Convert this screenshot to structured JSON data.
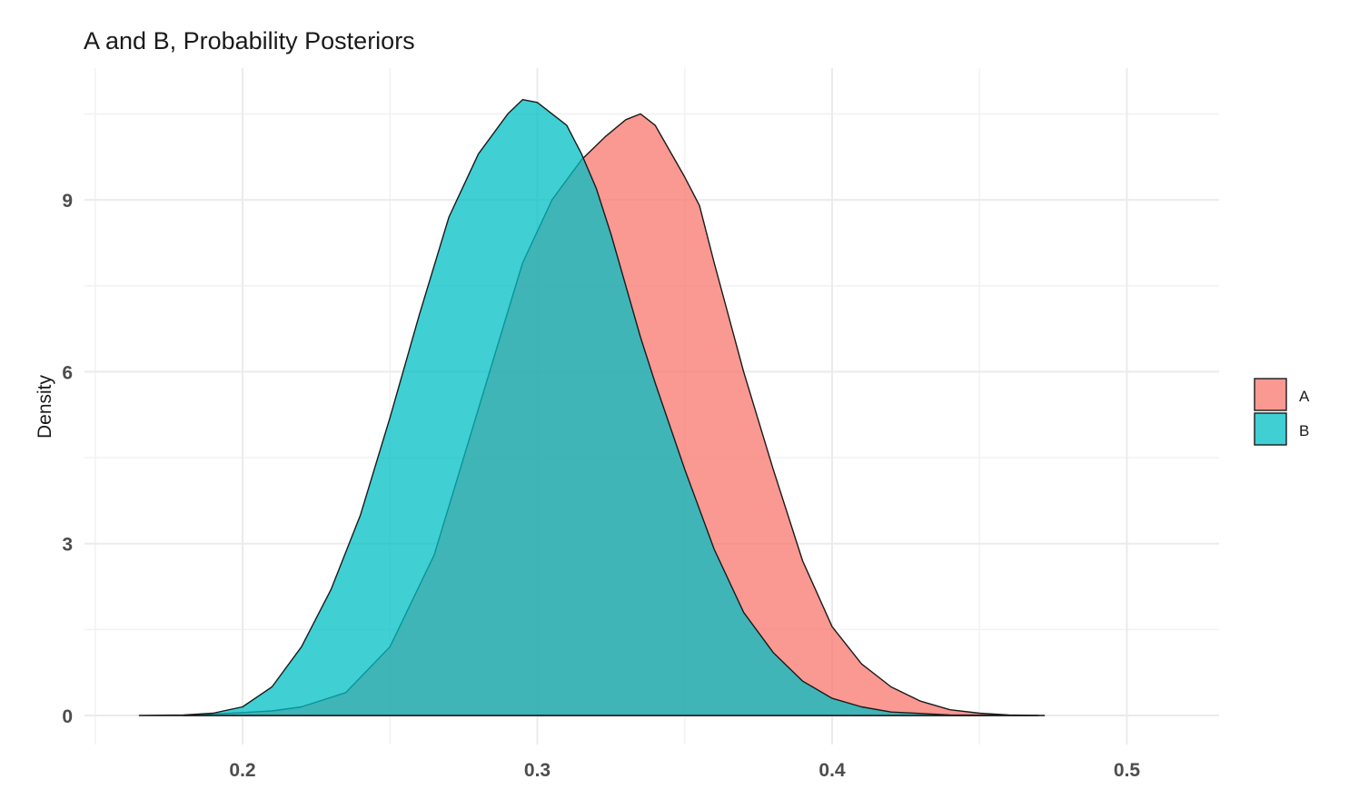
{
  "chart_data": {
    "type": "area",
    "title": "A and B, Probability Posteriors",
    "xlabel": "",
    "ylabel": "Density",
    "xlim": [
      0.15,
      0.53
    ],
    "ylim": [
      0,
      10.9
    ],
    "x_ticks": [
      0.2,
      0.3,
      0.4,
      0.5
    ],
    "x_tick_labels": [
      "0.2",
      "0.3",
      "0.4",
      "0.5"
    ],
    "y_ticks": [
      0,
      3,
      6,
      9
    ],
    "y_tick_labels": [
      "0",
      "3",
      "6",
      "9"
    ],
    "grid": true,
    "legend_position": "right",
    "series": [
      {
        "name": "A",
        "color": "#F8766D",
        "x": [
          0.18,
          0.2,
          0.21,
          0.22,
          0.235,
          0.25,
          0.265,
          0.275,
          0.285,
          0.295,
          0.305,
          0.315,
          0.323,
          0.33,
          0.335,
          0.34,
          0.345,
          0.35,
          0.355,
          0.36,
          0.37,
          0.38,
          0.39,
          0.4,
          0.41,
          0.42,
          0.43,
          0.44,
          0.45,
          0.46,
          0.472
        ],
        "y": [
          0.0,
          0.05,
          0.08,
          0.15,
          0.4,
          1.2,
          2.8,
          4.5,
          6.2,
          7.9,
          9.0,
          9.7,
          10.1,
          10.4,
          10.5,
          10.3,
          9.85,
          9.4,
          8.9,
          7.9,
          6.0,
          4.3,
          2.7,
          1.55,
          0.9,
          0.5,
          0.25,
          0.1,
          0.04,
          0.01,
          0.0
        ]
      },
      {
        "name": "B",
        "color": "#00BFC4",
        "x": [
          0.165,
          0.18,
          0.19,
          0.2,
          0.21,
          0.22,
          0.23,
          0.24,
          0.25,
          0.26,
          0.27,
          0.28,
          0.29,
          0.295,
          0.3,
          0.305,
          0.31,
          0.315,
          0.32,
          0.325,
          0.33,
          0.335,
          0.34,
          0.35,
          0.36,
          0.37,
          0.38,
          0.39,
          0.4,
          0.41,
          0.42,
          0.44,
          0.47
        ],
        "y": [
          0.0,
          0.01,
          0.04,
          0.15,
          0.5,
          1.2,
          2.2,
          3.5,
          5.2,
          7.0,
          8.7,
          9.8,
          10.5,
          10.75,
          10.7,
          10.5,
          10.3,
          9.8,
          9.2,
          8.4,
          7.5,
          6.6,
          5.8,
          4.3,
          2.9,
          1.8,
          1.1,
          0.6,
          0.3,
          0.15,
          0.06,
          0.01,
          0.0
        ]
      }
    ]
  }
}
